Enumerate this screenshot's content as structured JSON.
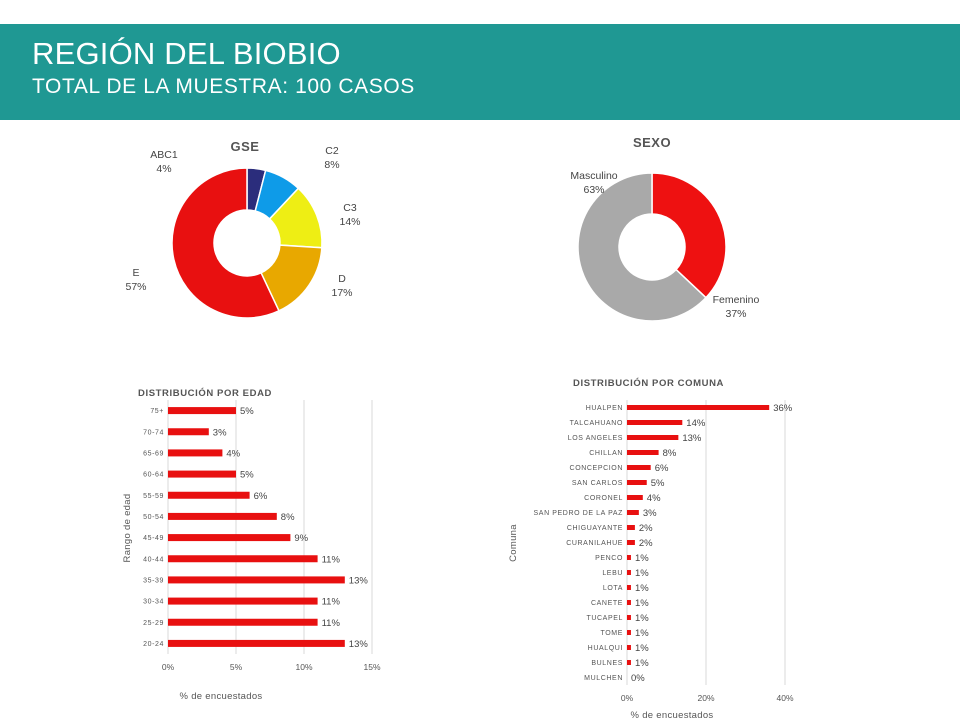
{
  "header": {
    "title": "REGIÓN DEL BIOBIO",
    "subtitle": "TOTAL DE LA MUESTRA: 100 CASOS"
  },
  "chart_data": [
    {
      "type": "pie",
      "title": "GSE",
      "slices": [
        {
          "name": "ABC1",
          "value": 4,
          "label": "4%",
          "color": "#2b2d7c"
        },
        {
          "name": "C2",
          "value": 8,
          "label": "8%",
          "color": "#0e9be8"
        },
        {
          "name": "C3",
          "value": 14,
          "label": "14%",
          "color": "#eeee14"
        },
        {
          "name": "D",
          "value": 17,
          "label": "17%",
          "color": "#e8a800"
        },
        {
          "name": "E",
          "value": 57,
          "label": "57%",
          "color": "#e81010"
        }
      ]
    },
    {
      "type": "pie",
      "title": "SEXO",
      "slices": [
        {
          "name": "Femenino",
          "value": 37,
          "label": "37%",
          "color": "#ee1111"
        },
        {
          "name": "Masculino",
          "value": 63,
          "label": "63%",
          "color": "#a9a9a9"
        }
      ]
    },
    {
      "type": "bar",
      "orientation": "horizontal",
      "title": "DISTRIBUCIÓN POR EDAD",
      "xlabel": "% de encuestados",
      "ylabel": "Rango de edad",
      "xlim": [
        0,
        15
      ],
      "xticks": [
        "0%",
        "5%",
        "10%",
        "15%"
      ],
      "categories": [
        "75+",
        "70-74",
        "65-69",
        "60-64",
        "55-59",
        "50-54",
        "45-49",
        "40-44",
        "35-39",
        "30-34",
        "25-29",
        "20-24"
      ],
      "values": [
        5,
        3,
        4,
        5,
        6,
        8,
        9,
        11,
        13,
        11,
        11,
        13
      ],
      "labels": [
        "5%",
        "3%",
        "4%",
        "5%",
        "6%",
        "8%",
        "9%",
        "11%",
        "13%",
        "11%",
        "11%",
        "13%"
      ],
      "color": "#e81010"
    },
    {
      "type": "bar",
      "orientation": "horizontal",
      "title": "DISTRIBUCIÓN POR COMUNA",
      "xlabel": "% de encuestados",
      "ylabel": "Comuna",
      "xlim": [
        0,
        40
      ],
      "xticks": [
        "0%",
        "20%",
        "40%"
      ],
      "categories": [
        "HUALPEN",
        "TALCAHUANO",
        "LOS ANGELES",
        "CHILLAN",
        "CONCEPCION",
        "SAN CARLOS",
        "CORONEL",
        "SAN PEDRO DE LA PAZ",
        "CHIGUAYANTE",
        "CURANILAHUE",
        "PENCO",
        "LEBU",
        "LOTA",
        "CANETE",
        "TUCAPEL",
        "TOME",
        "HUALQUI",
        "BULNES",
        "MULCHEN"
      ],
      "values": [
        36,
        14,
        13,
        8,
        6,
        5,
        4,
        3,
        2,
        2,
        1,
        1,
        1,
        1,
        1,
        1,
        1,
        1,
        0
      ],
      "labels": [
        "36%",
        "14%",
        "13%",
        "8%",
        "6%",
        "5%",
        "4%",
        "3%",
        "2%",
        "2%",
        "1%",
        "1%",
        "1%",
        "1%",
        "1%",
        "1%",
        "1%",
        "1%",
        "0%"
      ],
      "color": "#e81010"
    }
  ]
}
